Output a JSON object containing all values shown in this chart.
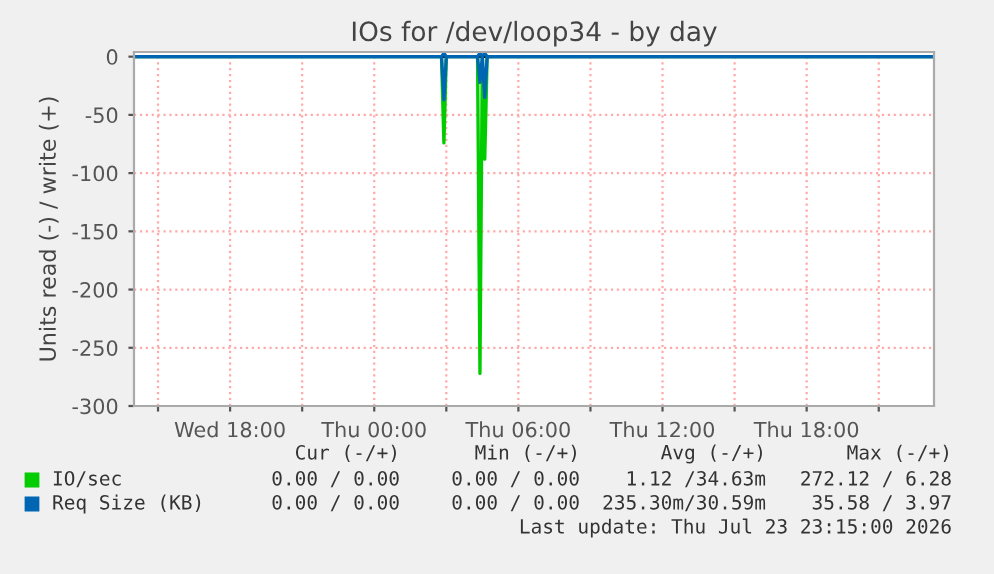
{
  "chart_data": {
    "type": "line",
    "title": "IOs for /dev/loop34 - by day",
    "ylabel": "Units read (-) / write (+)",
    "xlim": [
      "2026-07-22T14:00",
      "2026-07-23T23:18"
    ],
    "xticks": [
      {
        "value": "2026-07-22T15:00",
        "label": null
      },
      {
        "value": "2026-07-22T18:00",
        "label": "Wed 18:00"
      },
      {
        "value": "2026-07-22T21:00",
        "label": null
      },
      {
        "value": "2026-07-23T00:00",
        "label": "Thu 00:00"
      },
      {
        "value": "2026-07-23T03:00",
        "label": null
      },
      {
        "value": "2026-07-23T06:00",
        "label": "Thu 06:00"
      },
      {
        "value": "2026-07-23T09:00",
        "label": null
      },
      {
        "value": "2026-07-23T12:00",
        "label": "Thu 12:00"
      },
      {
        "value": "2026-07-23T15:00",
        "label": null
      },
      {
        "value": "2026-07-23T18:00",
        "label": "Thu 18:00"
      },
      {
        "value": "2026-07-23T21:00",
        "label": null
      }
    ],
    "ylim": [
      -300,
      4
    ],
    "yticks": [
      -300,
      -250,
      -200,
      -150,
      -100,
      -50,
      0
    ],
    "grid": true,
    "legend": "bottom left",
    "ref_lines": [
      {
        "axis": "y",
        "value": 0,
        "color": "#000000"
      }
    ],
    "series": [
      {
        "name": "IO/sec",
        "color": "#00cc00",
        "x": [
          "2026-07-22T14:00",
          "2026-07-23T02:48",
          "2026-07-23T02:54",
          "2026-07-23T03:00",
          "2026-07-23T04:18",
          "2026-07-23T04:24",
          "2026-07-23T04:30",
          "2026-07-23T04:36",
          "2026-07-23T04:42",
          "2026-07-23T23:18"
        ],
        "values": [
          0,
          0,
          -74,
          0,
          0,
          -272,
          0,
          -88,
          0,
          0
        ]
      },
      {
        "name": "Req Size (KB)",
        "color": "#0066b3",
        "x": [
          "2026-07-22T14:00",
          "2026-07-23T02:48",
          "2026-07-23T02:54",
          "2026-07-23T03:00",
          "2026-07-23T04:18",
          "2026-07-23T04:24",
          "2026-07-23T04:30",
          "2026-07-23T04:36",
          "2026-07-23T04:42",
          "2026-07-23T23:18"
        ],
        "values": [
          0,
          0,
          -37,
          0,
          0,
          -22,
          0,
          -35,
          0,
          0
        ]
      },
      {
        "color": "#0066b3",
        "x": [
          "2026-07-22T14:00",
          "2026-07-23T02:48",
          "2026-07-23T02:54",
          "2026-07-23T03:00",
          "2026-07-23T04:18",
          "2026-07-23T04:24",
          "2026-07-23T04:30",
          "2026-07-23T04:36",
          "2026-07-23T04:42",
          "2026-07-23T23:18"
        ],
        "values": [
          0,
          0,
          3,
          0,
          0,
          3,
          0,
          3,
          0,
          0
        ]
      }
    ],
    "annotations": [
      "Cur (-/+)",
      "Min (-/+)",
      "Avg (-/+)",
      "Max (-/+)",
      "0.00 / 0.00",
      "0.00 / 0.00",
      "1.12 /34.63m",
      "272.12 / 6.28",
      "0.00 / 0.00",
      "0.00 / 0.00",
      "235.30m/30.59m",
      "35.58 / 3.97",
      "Last update: Thu Jul 23 23:15:00 2026"
    ]
  }
}
